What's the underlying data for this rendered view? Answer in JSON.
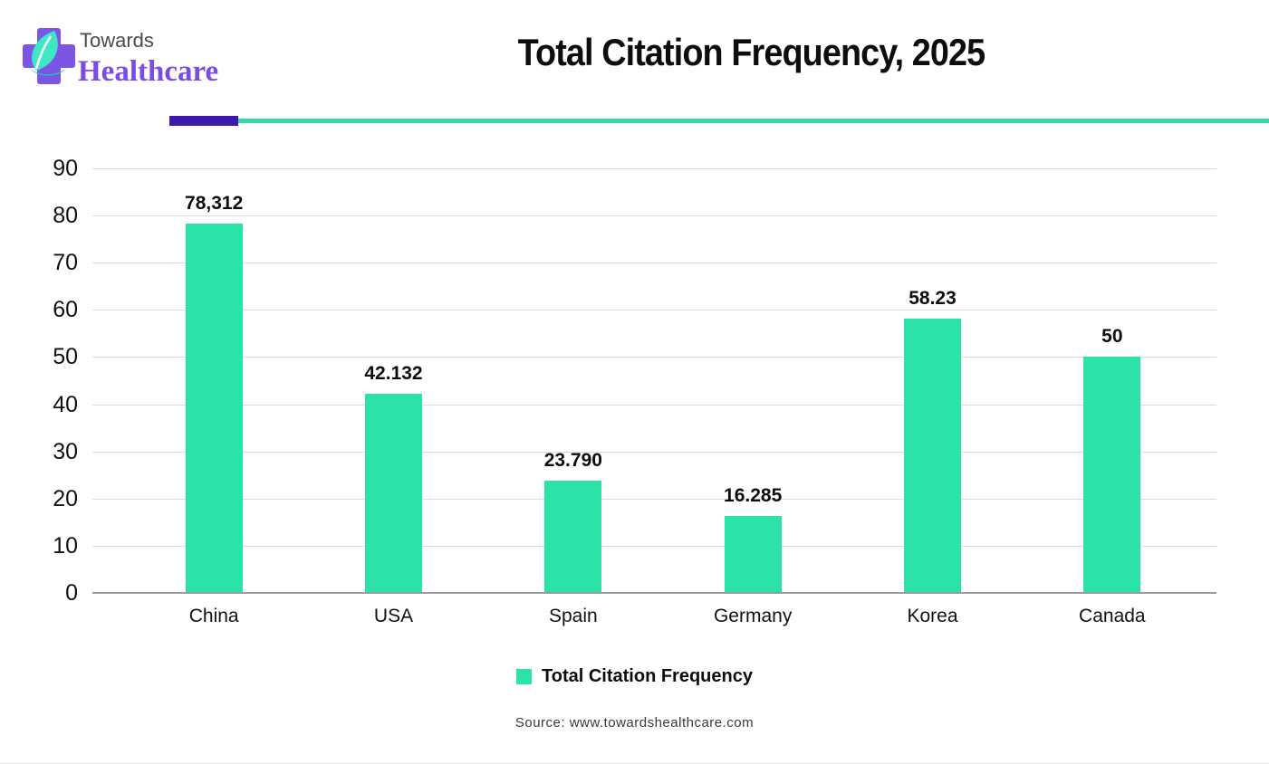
{
  "header": {
    "logo": {
      "word1": "Towards",
      "word2": "Healthcare"
    },
    "title": "Total Citation Frequency, 2025"
  },
  "chart_data": {
    "type": "bar",
    "title": "Total Citation Frequency, 2025",
    "categories": [
      "China",
      "USA",
      "Spain",
      "Germany",
      "Korea",
      "Canada"
    ],
    "values": [
      78.312,
      42.132,
      23.79,
      16.285,
      58.23,
      50
    ],
    "value_labels": [
      "78,312",
      "42.132",
      "23.790",
      "16.285",
      "58.23",
      "50"
    ],
    "series_name": "Total Citation Frequency",
    "xlabel": "",
    "ylabel": "",
    "ylim": [
      0,
      90
    ],
    "yticks": [
      0,
      10,
      20,
      30,
      40,
      50,
      60,
      70,
      80,
      90
    ],
    "grid": true,
    "legend_position": "bottom",
    "bar_color": "#2be2a9"
  },
  "legend": {
    "label": "Total Citation Frequency"
  },
  "source": {
    "text": "Source: www.towardshealthcare.com"
  },
  "colors": {
    "bar": "#2be2a9",
    "divider_purple": "#3d1aae",
    "divider_teal": "#2fd9a7",
    "gridline": "#dcdcdc",
    "axis_line": "#9b9b9b",
    "logo_purple": "#7d55e6",
    "logo_text_purple": "#7a4be6",
    "logo_teal": "#3fe8c5",
    "logo_teal_dark": "#17c9ad",
    "towards_gray": "#4a4a4a"
  }
}
